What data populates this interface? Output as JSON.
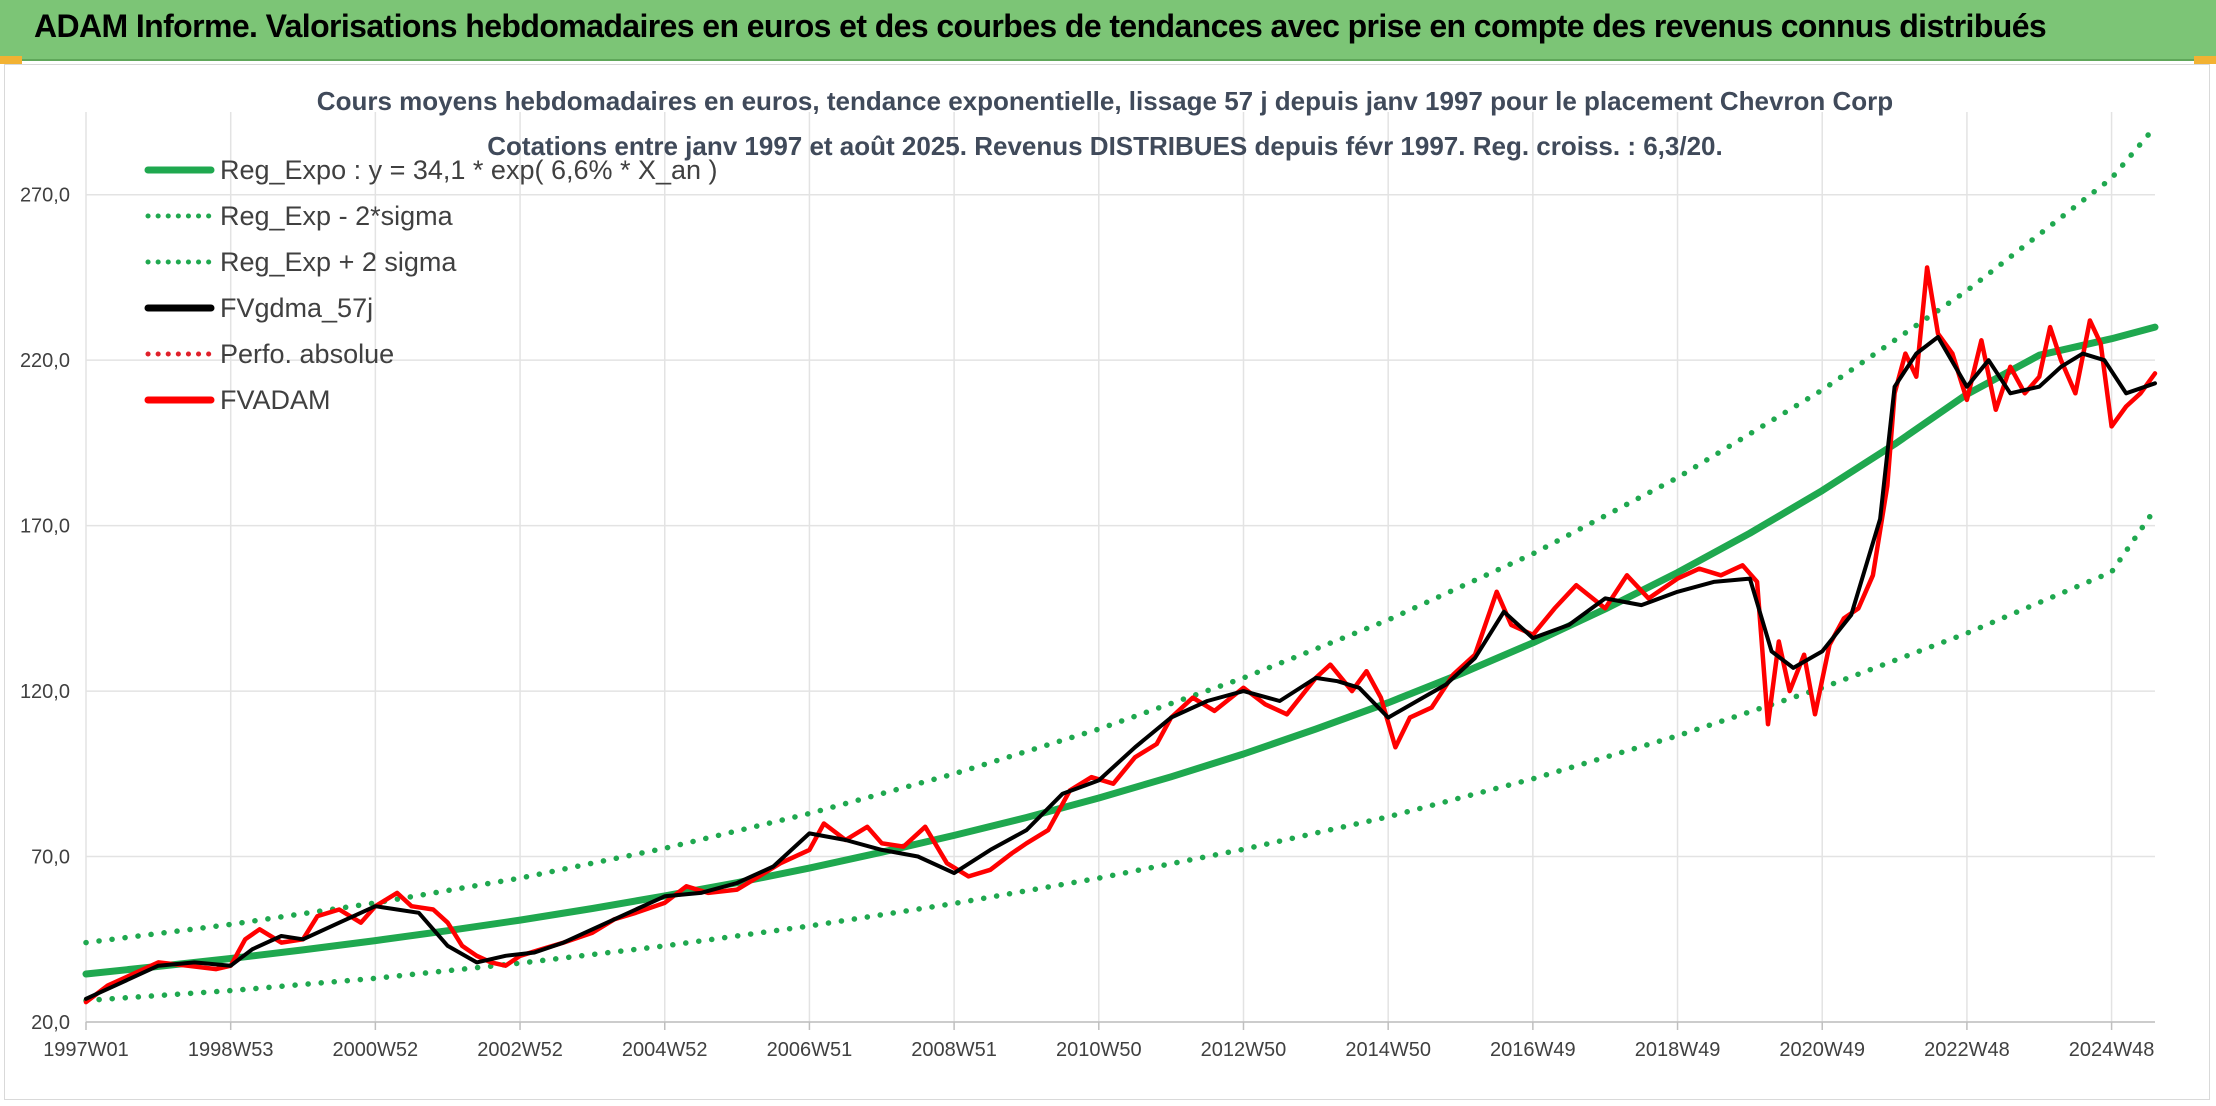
{
  "banner": {
    "title": "ADAM Informe. Valorisations hebdomadaires en euros et des courbes de tendances avec prise en compte des revenus connus distribués"
  },
  "colors": {
    "banner_bg": "#7cc576",
    "reg_expo": "#1fa84f",
    "sigma": "#1fa84f",
    "fvgdma": "#000000",
    "perfo": "#e0202a",
    "fvadam": "#ff0000",
    "grid": "#e3e3e3"
  },
  "chart_data": {
    "type": "line",
    "title": "Cours moyens hebdomadaires en euros, tendance exponentielle, lissage 57 j depuis janv 1997 pour le placement Chevron Corp",
    "subtitle": "Cotations entre janv 1997 et août 2025. Revenus DISTRIBUES depuis févr 1997. Reg. croiss. : 6,3/20.",
    "xlabel": "",
    "ylabel": "",
    "x_range": [
      1997.0,
      2025.6
    ],
    "ylim": [
      20,
      295
    ],
    "y_ticks": [
      20,
      70,
      120,
      170,
      220,
      270
    ],
    "y_tick_labels": [
      "20,0",
      "70,0",
      "120,0",
      "170,0",
      "220,0",
      "270,0"
    ],
    "x_ticks": [
      1997.0,
      1999.0,
      2001.0,
      2003.0,
      2005.0,
      2007.0,
      2009.0,
      2011.0,
      2013.0,
      2015.0,
      2017.0,
      2019.0,
      2021.0,
      2023.0,
      2025.0
    ],
    "x_tick_labels": [
      "1997W01",
      "1998W53",
      "2000W52",
      "2002W52",
      "2004W52",
      "2006W51",
      "2008W51",
      "2010W50",
      "2012W50",
      "2014W50",
      "2016W49",
      "2018W49",
      "2020W49",
      "2022W48",
      "2024W48"
    ],
    "grid": true,
    "legend_position": "top-left",
    "legend": [
      {
        "label": "Reg_Expo : y = 34,1 * exp( 6,6% *  X_an )",
        "style": "solid",
        "color": "#1fa84f"
      },
      {
        "label": "Reg_Exp - 2*sigma",
        "style": "dotted",
        "color": "#1fa84f"
      },
      {
        "label": "Reg_Exp + 2 sigma",
        "style": "dotted",
        "color": "#1fa84f"
      },
      {
        "label": "FVgdma_57j",
        "style": "solid",
        "color": "#000000"
      },
      {
        "label": "Perfo. absolue",
        "style": "dotted",
        "color": "#e0202a"
      },
      {
        "label": "FVADAM",
        "style": "solid",
        "color": "#ff0000"
      }
    ],
    "series": [
      {
        "name": "Reg_Expo : y = 34,1 * exp( 6,6% *  X_an )",
        "x": [
          1997.0,
          1998.0,
          1999.0,
          2000.0,
          2001.0,
          2002.0,
          2003.0,
          2004.0,
          2005.0,
          2006.0,
          2007.0,
          2008.0,
          2009.0,
          2010.0,
          2011.0,
          2012.0,
          2013.0,
          2014.0,
          2015.0,
          2016.0,
          2017.0,
          2018.0,
          2019.0,
          2020.0,
          2021.0,
          2022.0,
          2023.0,
          2024.0,
          2025.0,
          2025.6
        ],
        "y": [
          34.5,
          36.8,
          39.2,
          41.8,
          44.6,
          47.6,
          50.8,
          54.3,
          58.1,
          62.1,
          66.5,
          71.3,
          76.4,
          81.8,
          87.7,
          94.1,
          101.0,
          108.5,
          116.5,
          125.2,
          134.6,
          144.8,
          155.8,
          167.7,
          180.6,
          194.6,
          209.7,
          221.5,
          226.5,
          230.0
        ]
      },
      {
        "name": "Reg_Exp - 2*sigma",
        "x": [
          1997.0,
          1999.0,
          2001.0,
          2003.0,
          2005.0,
          2007.0,
          2009.0,
          2011.0,
          2013.0,
          2015.0,
          2017.0,
          2019.0,
          2021.0,
          2023.0,
          2025.0,
          2025.6
        ],
        "y": [
          26.5,
          29.5,
          33.2,
          37.8,
          43.0,
          49.0,
          55.8,
          63.5,
          72.2,
          82.0,
          93.5,
          106.5,
          121.0,
          137.5,
          156.0,
          175.0
        ]
      },
      {
        "name": "Reg_Exp + 2 sigma",
        "x": [
          1997.0,
          1999.0,
          2001.0,
          2003.0,
          2005.0,
          2007.0,
          2009.0,
          2011.0,
          2013.0,
          2015.0,
          2017.0,
          2019.0,
          2021.0,
          2023.0,
          2025.0,
          2025.6
        ],
        "y": [
          44.0,
          49.5,
          56.0,
          63.5,
          72.5,
          83.0,
          95.0,
          108.5,
          124.0,
          141.5,
          161.5,
          184.5,
          211.0,
          241.0,
          275.0,
          290.5
        ]
      },
      {
        "name": "FVgdma_57j",
        "x": [
          1997.0,
          1997.5,
          1998.0,
          1998.5,
          1999.0,
          1999.3,
          1999.7,
          2000.0,
          2000.5,
          2001.0,
          2001.3,
          2001.6,
          2002.0,
          2002.4,
          2002.8,
          2003.2,
          2003.6,
          2004.0,
          2004.5,
          2005.0,
          2005.5,
          2006.0,
          2006.5,
          2007.0,
          2007.5,
          2008.0,
          2008.5,
          2009.0,
          2009.5,
          2010.0,
          2010.5,
          2011.0,
          2011.5,
          2012.0,
          2012.5,
          2013.0,
          2013.5,
          2014.0,
          2014.3,
          2014.6,
          2015.0,
          2015.4,
          2015.8,
          2016.2,
          2016.6,
          2017.0,
          2017.5,
          2018.0,
          2018.5,
          2019.0,
          2019.5,
          2020.0,
          2020.3,
          2020.6,
          2021.0,
          2021.4,
          2021.8,
          2022.0,
          2022.3,
          2022.6,
          2023.0,
          2023.3,
          2023.6,
          2024.0,
          2024.3,
          2024.6,
          2024.9,
          2025.2,
          2025.6
        ],
        "y": [
          27.0,
          32.0,
          37.0,
          38.0,
          37.0,
          42.0,
          46.0,
          45.0,
          50.0,
          55.0,
          54.0,
          53.0,
          43.0,
          38.0,
          40.0,
          41.0,
          44.0,
          48.0,
          53.0,
          58.0,
          59.0,
          62.0,
          67.0,
          77.0,
          75.0,
          72.0,
          70.0,
          65.0,
          72.0,
          78.0,
          89.0,
          93.0,
          103.0,
          112.0,
          117.0,
          120.0,
          117.0,
          124.0,
          123.0,
          121.0,
          112.0,
          117.0,
          122.0,
          130.0,
          144.0,
          136.0,
          140.0,
          148.0,
          146.0,
          150.0,
          153.0,
          154.0,
          132.0,
          127.0,
          132.0,
          143.0,
          172.0,
          212.0,
          222.0,
          227.0,
          212.0,
          220.0,
          210.0,
          212.0,
          218.0,
          222.0,
          220.0,
          210.0,
          213.0
        ]
      },
      {
        "name": "FVADAM",
        "x": [
          1997.0,
          1997.3,
          1997.6,
          1998.0,
          1998.4,
          1998.8,
          1999.0,
          1999.2,
          1999.4,
          1999.7,
          2000.0,
          2000.2,
          2000.5,
          2000.8,
          2001.0,
          2001.3,
          2001.5,
          2001.8,
          2002.0,
          2002.2,
          2002.4,
          2002.6,
          2002.8,
          2003.0,
          2003.3,
          2003.6,
          2004.0,
          2004.3,
          2004.6,
          2005.0,
          2005.3,
          2005.6,
          2006.0,
          2006.3,
          2006.6,
          2007.0,
          2007.2,
          2007.5,
          2007.8,
          2008.0,
          2008.3,
          2008.6,
          2008.9,
          2009.2,
          2009.5,
          2009.8,
          2010.0,
          2010.3,
          2010.6,
          2010.9,
          2011.2,
          2011.5,
          2011.8,
          2012.0,
          2012.3,
          2012.6,
          2013.0,
          2013.3,
          2013.6,
          2014.0,
          2014.2,
          2014.5,
          2014.7,
          2014.9,
          2015.1,
          2015.3,
          2015.6,
          2015.9,
          2016.2,
          2016.5,
          2016.7,
          2017.0,
          2017.3,
          2017.6,
          2018.0,
          2018.3,
          2018.6,
          2019.0,
          2019.3,
          2019.6,
          2019.9,
          2020.1,
          2020.25,
          2020.4,
          2020.55,
          2020.75,
          2020.9,
          2021.1,
          2021.3,
          2021.5,
          2021.7,
          2021.9,
          2022.0,
          2022.15,
          2022.3,
          2022.45,
          2022.6,
          2022.8,
          2023.0,
          2023.2,
          2023.4,
          2023.6,
          2023.8,
          2024.0,
          2024.15,
          2024.3,
          2024.5,
          2024.7,
          2024.85,
          2025.0,
          2025.2,
          2025.4,
          2025.6
        ],
        "y": [
          26.0,
          31.0,
          34.0,
          38.0,
          37.0,
          36.0,
          37.0,
          45.0,
          48.0,
          44.0,
          45.0,
          52.0,
          54.0,
          50.0,
          55.0,
          59.0,
          55.0,
          54.0,
          50.0,
          43.0,
          40.0,
          38.0,
          37.0,
          40.0,
          42.0,
          44.0,
          47.0,
          51.0,
          53.0,
          56.0,
          61.0,
          59.0,
          60.0,
          64.0,
          68.0,
          72.0,
          80.0,
          75.0,
          79.0,
          74.0,
          73.0,
          79.0,
          68.0,
          64.0,
          66.0,
          71.0,
          74.0,
          78.0,
          90.0,
          94.0,
          92.0,
          100.0,
          104.0,
          112.0,
          118.0,
          114.0,
          121.0,
          116.0,
          113.0,
          124.0,
          128.0,
          120.0,
          126.0,
          118.0,
          103.0,
          112.0,
          115.0,
          125.0,
          131.0,
          150.0,
          140.0,
          137.0,
          145.0,
          152.0,
          145.0,
          155.0,
          148.0,
          154.0,
          157.0,
          155.0,
          158.0,
          153.0,
          110.0,
          135.0,
          120.0,
          131.0,
          113.0,
          134.0,
          142.0,
          145.0,
          155.0,
          182.0,
          210.0,
          222.0,
          215.0,
          248.0,
          228.0,
          222.0,
          208.0,
          226.0,
          205.0,
          218.0,
          210.0,
          215.0,
          230.0,
          220.0,
          210.0,
          232.0,
          225.0,
          200.0,
          206.0,
          210.0,
          216.0
        ]
      }
    ]
  }
}
